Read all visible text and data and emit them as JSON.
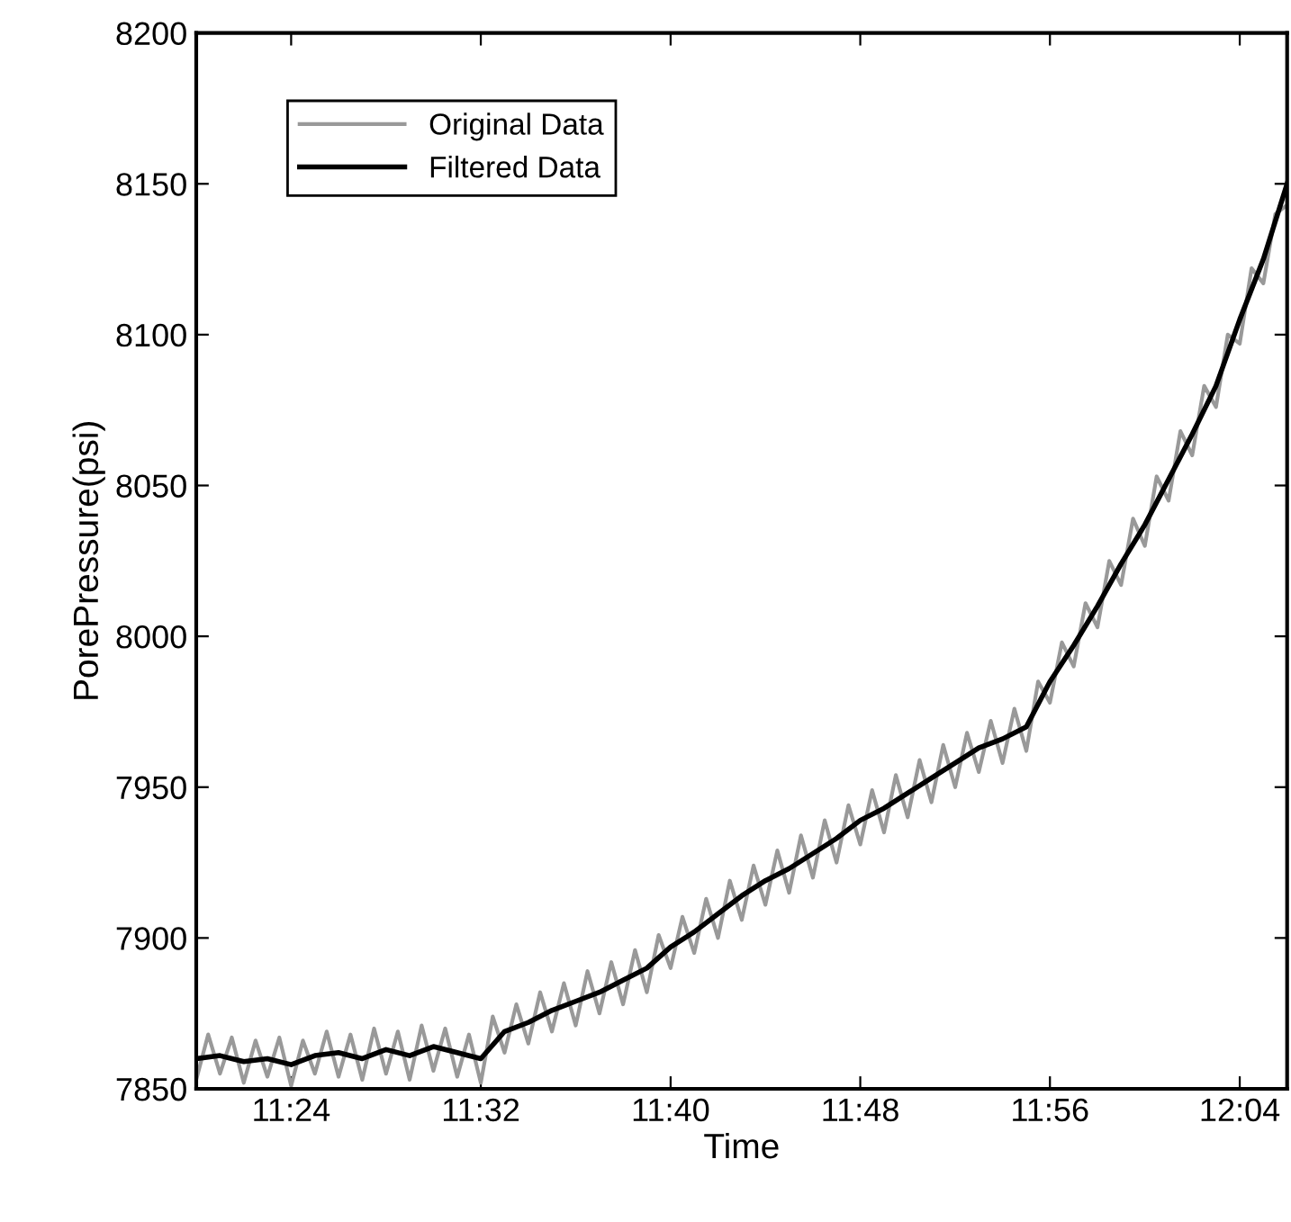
{
  "chart_data": {
    "type": "line",
    "xlabel": "Time",
    "ylabel": "PorePressure(psi)",
    "xlim": [
      11.3333,
      12.1
    ],
    "ylim": [
      7850,
      8200
    ],
    "xticks": [
      {
        "value": 11.4,
        "label": "11:24"
      },
      {
        "value": 11.5333,
        "label": "11:32"
      },
      {
        "value": 11.6667,
        "label": "11:40"
      },
      {
        "value": 11.8,
        "label": "11:48"
      },
      {
        "value": 11.9333,
        "label": "11:56"
      },
      {
        "value": 12.0667,
        "label": "12:04"
      }
    ],
    "yticks": [
      7850,
      7900,
      7950,
      8000,
      8050,
      8100,
      8150,
      8200
    ],
    "legend": "top left",
    "grid": false,
    "series": [
      {
        "name": "Original Data",
        "color": "#999999",
        "x": [
          11.3333,
          11.3417,
          11.35,
          11.3583,
          11.3667,
          11.375,
          11.3833,
          11.3917,
          11.4,
          11.4083,
          11.4167,
          11.425,
          11.4333,
          11.4417,
          11.45,
          11.4583,
          11.4667,
          11.475,
          11.4833,
          11.4917,
          11.5,
          11.5083,
          11.5167,
          11.525,
          11.5333,
          11.5417,
          11.55,
          11.5583,
          11.5667,
          11.575,
          11.5833,
          11.5917,
          11.6,
          11.6083,
          11.6167,
          11.625,
          11.6333,
          11.6417,
          11.65,
          11.6583,
          11.6667,
          11.675,
          11.6833,
          11.6917,
          11.7,
          11.7083,
          11.7167,
          11.725,
          11.7333,
          11.7417,
          11.75,
          11.7583,
          11.7667,
          11.775,
          11.7833,
          11.7917,
          11.8,
          11.8083,
          11.8167,
          11.825,
          11.8333,
          11.8417,
          11.85,
          11.8583,
          11.8667,
          11.875,
          11.8833,
          11.8917,
          11.9,
          11.9083,
          11.9167,
          11.925,
          11.9333,
          11.9417,
          11.95,
          11.9583,
          11.9667,
          11.975,
          11.9833,
          11.9917,
          12.0,
          12.0083,
          12.0167,
          12.025,
          12.0333,
          12.0417,
          12.05,
          12.0583,
          12.0667,
          12.075,
          12.0833,
          12.0917,
          12.1
        ],
        "values": [
          7853,
          7868,
          7855,
          7867,
          7852,
          7866,
          7854,
          7867,
          7851,
          7866,
          7855,
          7869,
          7854,
          7868,
          7853,
          7870,
          7855,
          7869,
          7853,
          7871,
          7856,
          7870,
          7854,
          7868,
          7852,
          7874,
          7862,
          7878,
          7865,
          7882,
          7869,
          7885,
          7871,
          7889,
          7875,
          7892,
          7878,
          7896,
          7882,
          7901,
          7890,
          7907,
          7895,
          7913,
          7900,
          7919,
          7906,
          7924,
          7911,
          7929,
          7915,
          7934,
          7920,
          7939,
          7925,
          7944,
          7931,
          7949,
          7935,
          7954,
          7940,
          7959,
          7945,
          7964,
          7950,
          7968,
          7955,
          7972,
          7958,
          7976,
          7962,
          7985,
          7978,
          7998,
          7990,
          8011,
          8003,
          8025,
          8017,
          8039,
          8030,
          8053,
          8045,
          8068,
          8060,
          8083,
          8076,
          8100,
          8097,
          8122,
          8117,
          8140,
          8143
        ]
      },
      {
        "name": "Filtered Data",
        "color": "#000000",
        "x": [
          11.3333,
          11.35,
          11.3667,
          11.3833,
          11.4,
          11.4167,
          11.4333,
          11.45,
          11.4667,
          11.4833,
          11.5,
          11.5167,
          11.5333,
          11.55,
          11.5667,
          11.5833,
          11.6,
          11.6167,
          11.6333,
          11.65,
          11.6667,
          11.6833,
          11.7,
          11.7167,
          11.7333,
          11.75,
          11.7667,
          11.7833,
          11.8,
          11.8167,
          11.8333,
          11.85,
          11.8667,
          11.8833,
          11.9,
          11.9167,
          11.9333,
          11.95,
          11.9667,
          11.9833,
          12.0,
          12.0167,
          12.0333,
          12.05,
          12.0667,
          12.0833,
          12.1
        ],
        "values": [
          7860,
          7861,
          7859,
          7860,
          7858,
          7861,
          7862,
          7860,
          7863,
          7861,
          7864,
          7862,
          7860,
          7869,
          7872,
          7876,
          7879,
          7882,
          7886,
          7890,
          7897,
          7902,
          7908,
          7914,
          7919,
          7923,
          7928,
          7933,
          7939,
          7943,
          7948,
          7953,
          7958,
          7963,
          7966,
          7970,
          7985,
          7997,
          8010,
          8024,
          8037,
          8052,
          8067,
          8083,
          8105,
          8125,
          8150
        ]
      }
    ]
  }
}
